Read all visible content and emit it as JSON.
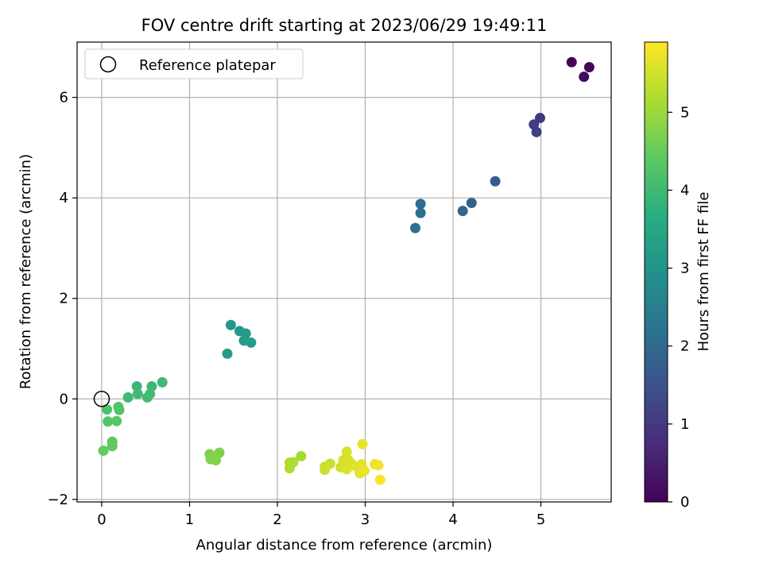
{
  "chart_data": {
    "type": "scatter",
    "title": "FOV centre drift starting at 2023/06/29 19:49:11",
    "xlabel": "Angular distance from reference (arcmin)",
    "ylabel": "Rotation from reference (arcmin)",
    "xlim": [
      -0.28,
      5.8
    ],
    "ylim": [
      -2.05,
      7.1
    ],
    "x_ticks": [
      0,
      1,
      2,
      3,
      4,
      5
    ],
    "y_ticks": [
      -2,
      0,
      2,
      4,
      6
    ],
    "grid": true,
    "legend": {
      "position": "top-left",
      "entries": [
        "Reference platepar"
      ]
    },
    "colorbar": {
      "label": "Hours from first FF file",
      "range": [
        0,
        5.9
      ],
      "ticks": [
        0,
        1,
        2,
        3,
        4,
        5
      ],
      "colormap": "viridis"
    },
    "reference_point": {
      "name": "Reference platepar",
      "x": 0,
      "y": 0
    },
    "points": [
      {
        "x": 5.35,
        "y": 6.7,
        "c": 0.05
      },
      {
        "x": 5.55,
        "y": 6.6,
        "c": 0.1
      },
      {
        "x": 5.49,
        "y": 6.41,
        "c": 0.15
      },
      {
        "x": 4.99,
        "y": 5.59,
        "c": 1.0
      },
      {
        "x": 4.92,
        "y": 5.46,
        "c": 1.05
      },
      {
        "x": 4.95,
        "y": 5.31,
        "c": 1.1
      },
      {
        "x": 4.48,
        "y": 4.33,
        "c": 1.7
      },
      {
        "x": 4.21,
        "y": 3.9,
        "c": 1.85
      },
      {
        "x": 4.11,
        "y": 3.74,
        "c": 1.9
      },
      {
        "x": 3.63,
        "y": 3.88,
        "c": 2.1
      },
      {
        "x": 3.63,
        "y": 3.7,
        "c": 2.15
      },
      {
        "x": 3.57,
        "y": 3.4,
        "c": 2.2
      },
      {
        "x": 1.47,
        "y": 1.47,
        "c": 3.1
      },
      {
        "x": 1.57,
        "y": 1.35,
        "c": 3.15
      },
      {
        "x": 1.64,
        "y": 1.3,
        "c": 3.2
      },
      {
        "x": 1.62,
        "y": 1.16,
        "c": 3.22
      },
      {
        "x": 1.7,
        "y": 1.12,
        "c": 3.25
      },
      {
        "x": 1.43,
        "y": 0.9,
        "c": 3.3
      },
      {
        "x": 0.4,
        "y": 0.25,
        "c": 3.9
      },
      {
        "x": 0.57,
        "y": 0.25,
        "c": 3.95
      },
      {
        "x": 0.69,
        "y": 0.33,
        "c": 3.98
      },
      {
        "x": 0.3,
        "y": 0.03,
        "c": 4.0
      },
      {
        "x": 0.41,
        "y": 0.1,
        "c": 4.02
      },
      {
        "x": 0.52,
        "y": 0.03,
        "c": 4.05
      },
      {
        "x": 0.55,
        "y": 0.1,
        "c": 4.07
      },
      {
        "x": 0.06,
        "y": -0.21,
        "c": 4.2
      },
      {
        "x": 0.19,
        "y": -0.16,
        "c": 4.25
      },
      {
        "x": 0.2,
        "y": -0.22,
        "c": 4.28
      },
      {
        "x": 0.07,
        "y": -0.45,
        "c": 4.3
      },
      {
        "x": 0.17,
        "y": -0.44,
        "c": 4.33
      },
      {
        "x": 0.12,
        "y": -0.85,
        "c": 4.4
      },
      {
        "x": 0.12,
        "y": -0.94,
        "c": 4.43
      },
      {
        "x": 0.02,
        "y": -1.03,
        "c": 4.45
      },
      {
        "x": 1.23,
        "y": -1.1,
        "c": 4.7
      },
      {
        "x": 1.34,
        "y": -1.07,
        "c": 4.72
      },
      {
        "x": 1.24,
        "y": -1.2,
        "c": 4.74
      },
      {
        "x": 1.3,
        "y": -1.22,
        "c": 4.76
      },
      {
        "x": 1.28,
        "y": -1.16,
        "c": 4.78
      },
      {
        "x": 2.27,
        "y": -1.14,
        "c": 5.1
      },
      {
        "x": 2.14,
        "y": -1.27,
        "c": 5.15
      },
      {
        "x": 2.18,
        "y": -1.26,
        "c": 5.17
      },
      {
        "x": 2.14,
        "y": -1.38,
        "c": 5.2
      },
      {
        "x": 2.54,
        "y": -1.35,
        "c": 5.4
      },
      {
        "x": 2.6,
        "y": -1.29,
        "c": 5.42
      },
      {
        "x": 2.54,
        "y": -1.41,
        "c": 5.44
      },
      {
        "x": 2.72,
        "y": -1.36,
        "c": 5.5
      },
      {
        "x": 2.75,
        "y": -1.22,
        "c": 5.52
      },
      {
        "x": 2.79,
        "y": -1.05,
        "c": 5.55
      },
      {
        "x": 2.81,
        "y": -1.22,
        "c": 5.57
      },
      {
        "x": 2.85,
        "y": -1.3,
        "c": 5.58
      },
      {
        "x": 2.79,
        "y": -1.4,
        "c": 5.6
      },
      {
        "x": 2.9,
        "y": -1.35,
        "c": 5.62
      },
      {
        "x": 2.94,
        "y": -1.41,
        "c": 5.64
      },
      {
        "x": 2.96,
        "y": -1.3,
        "c": 5.66
      },
      {
        "x": 2.94,
        "y": -1.48,
        "c": 5.68
      },
      {
        "x": 2.97,
        "y": -0.9,
        "c": 5.7
      },
      {
        "x": 2.99,
        "y": -1.43,
        "c": 5.72
      },
      {
        "x": 3.11,
        "y": -1.3,
        "c": 5.75
      },
      {
        "x": 3.15,
        "y": -1.32,
        "c": 5.78
      },
      {
        "x": 3.17,
        "y": -1.61,
        "c": 5.85
      }
    ]
  }
}
